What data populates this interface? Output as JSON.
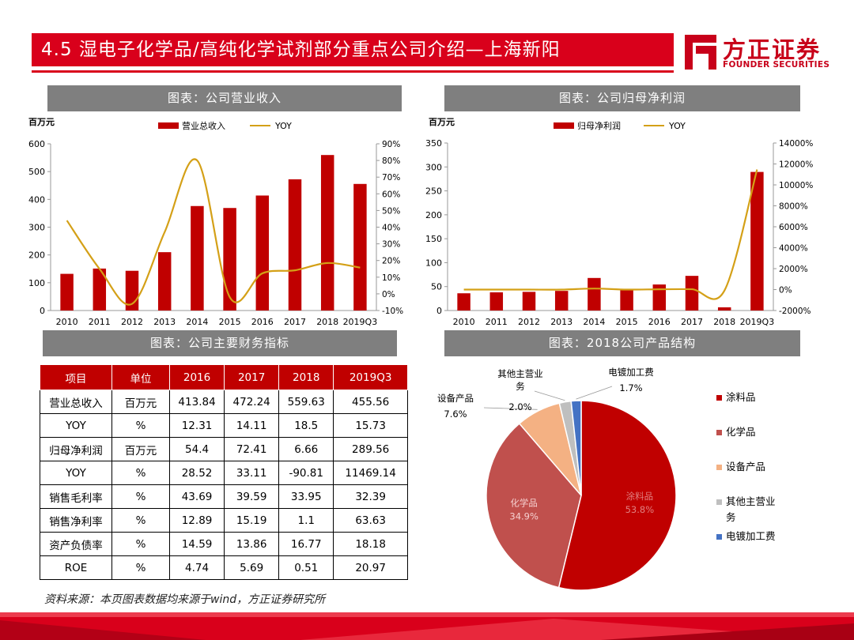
{
  "header": {
    "title": "4.5 湿电子化学品/高纯化学试剂部分重点公司介绍—上海新阳"
  },
  "logo": {
    "cn": "方正证券",
    "en": "FOUNDER SECURITIES"
  },
  "source": "资料来源：本页图表数据均来源于wind，方正证券研究所",
  "colors": {
    "accent": "#d9001b",
    "bar": "#c00000",
    "line": "#d4a017",
    "panel": "#7f7f7f"
  },
  "chart_data": [
    {
      "panel_title": "图表：公司营业收入",
      "type": "bar",
      "unit_label": "百万元",
      "categories": [
        "2010",
        "2011",
        "2012",
        "2013",
        "2014",
        "2015",
        "2016",
        "2017",
        "2018",
        "2019Q3"
      ],
      "series": [
        {
          "name": "营业总收入",
          "type": "bar",
          "axis": "left",
          "values": [
            132,
            151,
            143,
            210,
            376,
            369,
            413.84,
            472.24,
            559.63,
            455.56
          ]
        },
        {
          "name": "YOY",
          "type": "line",
          "axis": "right",
          "values": [
            44,
            15,
            -6,
            37,
            80,
            -2,
            12.31,
            14.11,
            18.5,
            15.73
          ]
        }
      ],
      "ylim_left": [
        0,
        600
      ],
      "yticks_left": [
        "0",
        "100",
        "200",
        "300",
        "400",
        "500",
        "600"
      ],
      "ylim_right": [
        -10,
        90
      ],
      "yticks_right": [
        "-10%",
        "0%",
        "10%",
        "20%",
        "30%",
        "40%",
        "50%",
        "60%",
        "70%",
        "80%",
        "90%"
      ],
      "legend": "top-center"
    },
    {
      "panel_title": "图表：公司归母净利润",
      "type": "bar",
      "unit_label": "百万元",
      "categories": [
        "2010",
        "2011",
        "2012",
        "2013",
        "2014",
        "2015",
        "2016",
        "2017",
        "2018",
        "2019Q3"
      ],
      "series": [
        {
          "name": "归母净利润",
          "type": "bar",
          "axis": "left",
          "values": [
            36,
            38,
            39,
            41,
            68,
            43,
            54.4,
            72.41,
            6.66,
            289.56
          ]
        },
        {
          "name": "YOY",
          "type": "line",
          "axis": "right",
          "values": [
            0,
            0,
            0,
            0,
            100,
            0,
            28.52,
            33.11,
            -90.81,
            11469.14
          ]
        }
      ],
      "ylim_left": [
        0,
        350
      ],
      "yticks_left": [
        "0",
        "50",
        "100",
        "150",
        "200",
        "250",
        "300",
        "350"
      ],
      "ylim_right": [
        -2000,
        14000
      ],
      "yticks_right": [
        "-2000%",
        "0%",
        "2000%",
        "4000%",
        "6000%",
        "8000%",
        "10000%",
        "12000%",
        "14000%"
      ],
      "legend": "top-center"
    },
    {
      "panel_title": "图表：公司主要财务指标",
      "type": "table",
      "columns": [
        "项目",
        "单位",
        "2016",
        "2017",
        "2018",
        "2019Q3"
      ],
      "rows": [
        [
          "营业总收入",
          "百万元",
          "413.84",
          "472.24",
          "559.63",
          "455.56"
        ],
        [
          "YOY",
          "%",
          "12.31",
          "14.11",
          "18.5",
          "15.73"
        ],
        [
          "归母净利润",
          "百万元",
          "54.4",
          "72.41",
          "6.66",
          "289.56"
        ],
        [
          "YOY",
          "%",
          "28.52",
          "33.11",
          "-90.81",
          "11469.14"
        ],
        [
          "销售毛利率",
          "%",
          "43.69",
          "39.59",
          "33.95",
          "32.39"
        ],
        [
          "销售净利率",
          "%",
          "12.89",
          "15.19",
          "1.1",
          "63.63"
        ],
        [
          "资产负债率",
          "%",
          "14.59",
          "13.86",
          "16.77",
          "18.18"
        ],
        [
          "ROE",
          "%",
          "4.74",
          "5.69",
          "0.51",
          "20.97"
        ]
      ]
    },
    {
      "panel_title": "图表：2018公司产品结构",
      "type": "pie",
      "slices": [
        {
          "name": "涂料品",
          "value": 53.8,
          "label": "53.8%",
          "color": "#c00000"
        },
        {
          "name": "化学品",
          "value": 34.9,
          "label": "34.9%",
          "color": "#c0504d"
        },
        {
          "name": "设备产品",
          "value": 7.6,
          "label": "7.6%",
          "color": "#f4b183"
        },
        {
          "name": "其他主营业务",
          "value": 2.0,
          "label": "2.0%",
          "color": "#bfbfbf"
        },
        {
          "name": "电镀加工费",
          "value": 1.7,
          "label": "1.7%",
          "color": "#4472c4"
        }
      ],
      "legend": "right"
    }
  ]
}
